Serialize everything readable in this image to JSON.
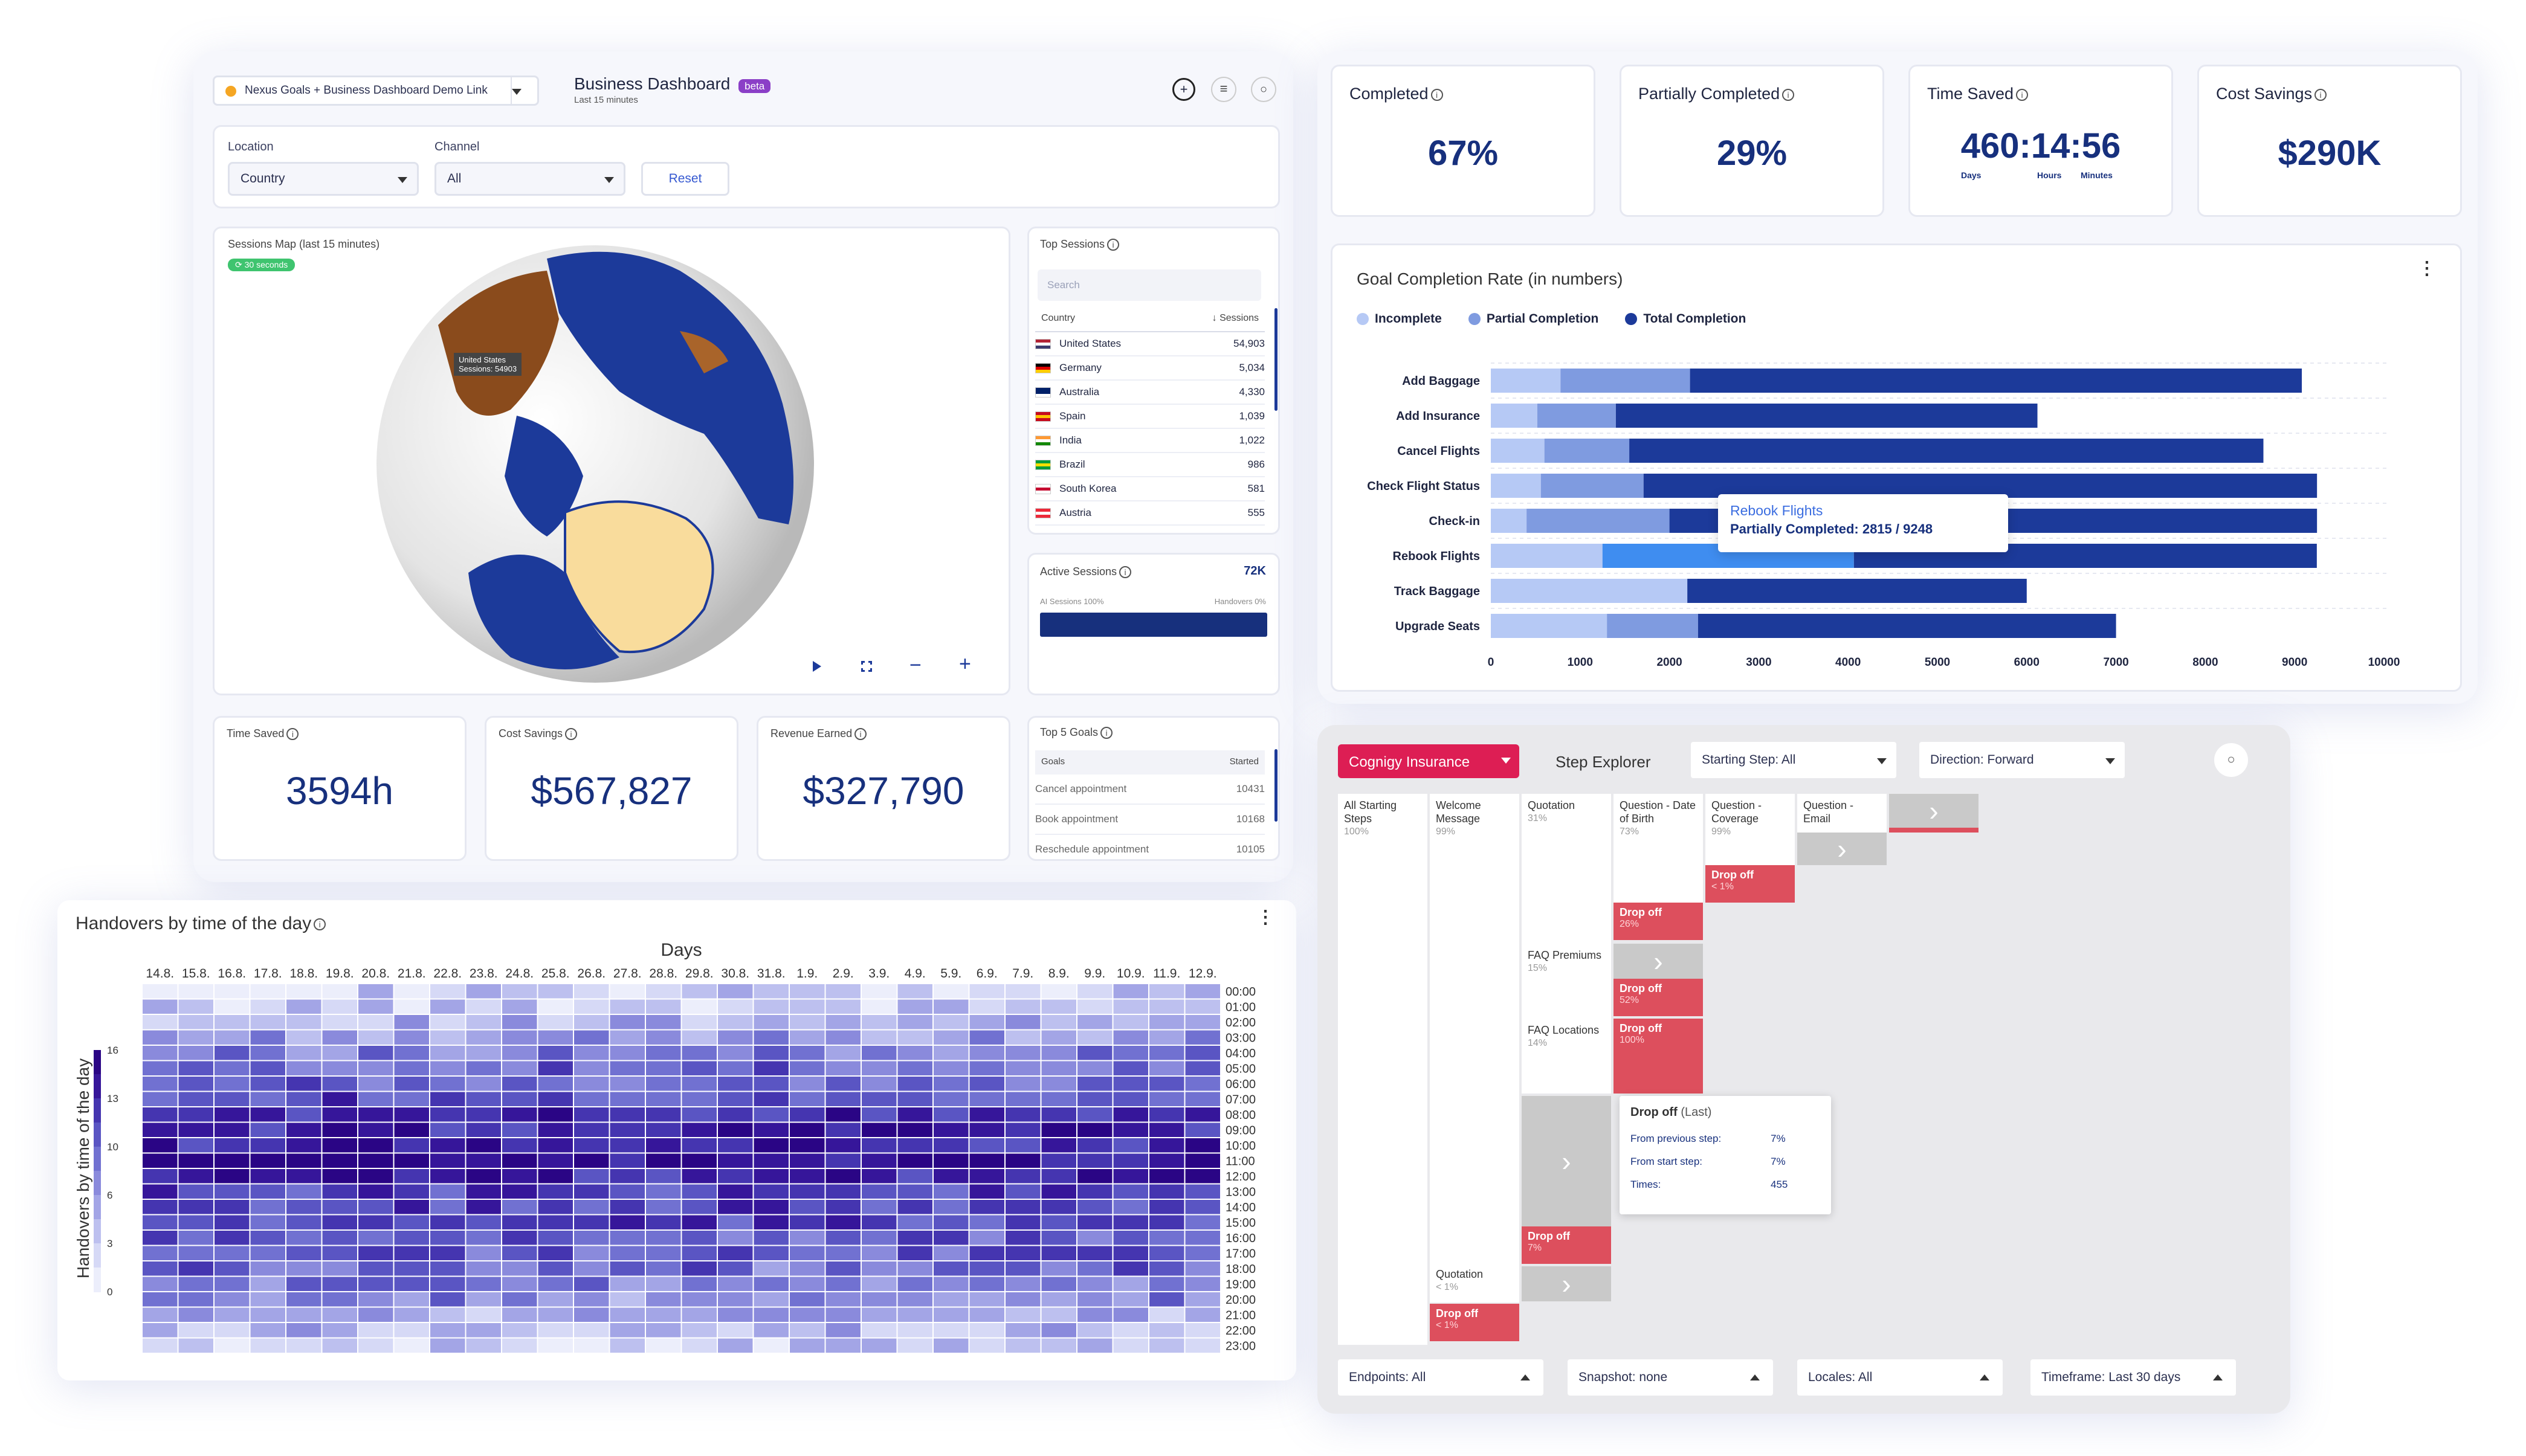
{
  "dashboard": {
    "project_select": "Nexus Goals + Business Dashboard Demo Link",
    "title": "Business Dashboard",
    "beta": "beta",
    "subtitle": "Last 15 minutes",
    "location_label": "Location",
    "location_value": "Country",
    "channel_label": "Channel",
    "channel_value": "All",
    "reset": "Reset",
    "map_title": "Sessions Map (last 15 minutes)",
    "map_refresh": "30 seconds",
    "map_tooltip_country": "United States",
    "map_tooltip_sessions": "Sessions: 54903",
    "top_sessions_title": "Top Sessions",
    "search_placeholder": "Search",
    "col_country": "Country",
    "col_sessions": "Sessions",
    "sessions": [
      {
        "country": "United States",
        "value": "54,903",
        "flag": "us"
      },
      {
        "country": "Germany",
        "value": "5,034",
        "flag": "de"
      },
      {
        "country": "Australia",
        "value": "4,330",
        "flag": "au"
      },
      {
        "country": "Spain",
        "value": "1,039",
        "flag": "es"
      },
      {
        "country": "India",
        "value": "1,022",
        "flag": "in"
      },
      {
        "country": "Brazil",
        "value": "986",
        "flag": "br"
      },
      {
        "country": "South Korea",
        "value": "581",
        "flag": "kr"
      },
      {
        "country": "Austria",
        "value": "555",
        "flag": "at"
      }
    ],
    "active_title": "Active Sessions",
    "active_value": "72K",
    "active_left": "AI Sessions 100%",
    "active_right": "Handovers 0%",
    "time_saved_label": "Time Saved",
    "time_saved_value": "3594h",
    "cost_savings_label": "Cost Savings",
    "cost_savings_value": "$567,827",
    "revenue_label": "Revenue Earned",
    "revenue_value": "$327,790",
    "top_goals_title": "Top 5 Goals",
    "col_goals": "Goals",
    "col_started": "Started",
    "goals": [
      {
        "name": "Cancel appointment",
        "value": "10431"
      },
      {
        "name": "Book appointment",
        "value": "10168"
      },
      {
        "name": "Reschedule appointment",
        "value": "10105"
      }
    ]
  },
  "kpis": {
    "completed_label": "Completed",
    "completed_value": "67%",
    "partial_label": "Partially Completed",
    "partial_value": "29%",
    "time_label": "Time Saved",
    "time_value": "460:14:56",
    "time_days": "Days",
    "time_hours": "Hours",
    "time_minutes": "Minutes",
    "cost_label": "Cost Savings",
    "cost_value": "$290K"
  },
  "goal_chart": {
    "tooltip_title": "Rebook Flights",
    "tooltip_text": "Partially Completed: 2815 / 9248",
    "chart_data": {
      "type": "bar",
      "orientation": "horizontal",
      "stacked": true,
      "title": "Goal Completion Rate (in numbers)",
      "categories": [
        "Add Baggage",
        "Add Insurance",
        "Cancel Flights",
        "Check Flight Status",
        "Check-in",
        "Rebook Flights",
        "Track Baggage",
        "Upgrade Seats"
      ],
      "series": [
        {
          "name": "Incomplete",
          "color": "#b6c9f5",
          "values": [
            780,
            520,
            600,
            560,
            400,
            1250,
            2200,
            1300
          ]
        },
        {
          "name": "Partial Completion",
          "color": "#7f9be0",
          "values": [
            1450,
            880,
            950,
            1150,
            1600,
            2815,
            0,
            1020
          ]
        },
        {
          "name": "Total Completion",
          "color": "#1c3a9a",
          "values": [
            6850,
            4720,
            7100,
            7540,
            7250,
            5183,
            3800,
            4680
          ]
        }
      ],
      "xlim": [
        0,
        10000
      ],
      "xticks": [
        "0",
        "1000",
        "2000",
        "3000",
        "4000",
        "5000",
        "6000",
        "7000",
        "8000",
        "9000",
        "10000"
      ],
      "legend": "top-left",
      "grid": true
    }
  },
  "heatmap": {
    "title": "Handovers by time of the day",
    "chart_data": {
      "type": "heatmap",
      "xlabel": "Days",
      "ylabel": "Handovers by time of the day",
      "x": [
        "14.8.",
        "15.8.",
        "16.8.",
        "17.8.",
        "18.8.",
        "19.8.",
        "20.8.",
        "21.8.",
        "22.8.",
        "23.8.",
        "24.8.",
        "25.8.",
        "26.8.",
        "27.8.",
        "28.8.",
        "29.8.",
        "30.8.",
        "31.8.",
        "1.9.",
        "2.9.",
        "3.9.",
        "4.9.",
        "5.9.",
        "6.9.",
        "7.9.",
        "8.9.",
        "9.9.",
        "10.9.",
        "11.9.",
        "12.9."
      ],
      "y": [
        "00:00",
        "01:00",
        "02:00",
        "03:00",
        "04:00",
        "05:00",
        "06:00",
        "07:00",
        "08:00",
        "09:00",
        "10:00",
        "11:00",
        "12:00",
        "13:00",
        "14:00",
        "15:00",
        "16:00",
        "17:00",
        "18:00",
        "19:00",
        "20:00",
        "21:00",
        "22:00",
        "23:00"
      ],
      "row_levels": [
        2,
        3,
        4,
        6,
        8,
        9,
        9,
        11,
        13,
        14,
        14,
        15,
        14,
        12,
        11,
        11,
        10,
        10,
        9,
        8,
        7,
        5,
        4,
        3
      ],
      "colorbar_ticks": [
        "16",
        "13",
        "10",
        "6",
        "3",
        "0"
      ],
      "zlim": [
        0,
        16
      ]
    }
  },
  "step_explorer": {
    "project": "Cognigy Insurance",
    "title": "Step Explorer",
    "starting_step": "Starting Step: All",
    "direction": "Direction: Forward",
    "columns": [
      {
        "name": "All Starting Steps",
        "pct": "100%"
      },
      {
        "name": "Welcome Message",
        "pct": "99%"
      },
      {
        "name": "Quotation",
        "pct": "31%"
      },
      {
        "name": "Question - Date of Birth",
        "pct": "73%"
      },
      {
        "name": "Question - Coverage",
        "pct": "99%"
      },
      {
        "name": "Question - Email",
        "pct": ""
      }
    ],
    "faq_premiums": "FAQ Premiums",
    "faq_premiums_pct": "15%",
    "faq_locations": "FAQ Locations",
    "faq_locations_pct": "14%",
    "quotation2": "Quotation",
    "quotation2_pct": "< 1%",
    "drop_label": "Drop off",
    "drop_pcts": [
      "< 1%",
      "26%",
      "52%",
      "100%",
      "7%",
      "< 1%"
    ],
    "tip_title": "Drop off",
    "tip_sub": "(Last)",
    "tip_prev_label": "From previous step:",
    "tip_prev": "7%",
    "tip_start_label": "From start step:",
    "tip_start": "7%",
    "tip_times_label": "Times:",
    "tip_times": "455",
    "endpoints": "Endpoints: All",
    "snapshot": "Snapshot: none",
    "locales": "Locales: All",
    "timeframe": "Timeframe: Last 30 days"
  }
}
